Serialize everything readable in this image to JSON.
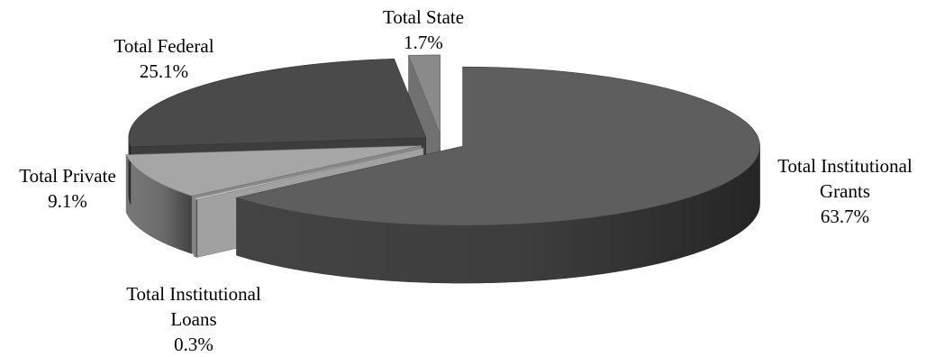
{
  "chart_data": {
    "type": "pie",
    "style": "3d-exploded",
    "legend": "none",
    "slices": [
      {
        "label": "Total Institutional Grants",
        "label_lines": [
          "Total Institutional",
          "Grants"
        ],
        "value": 63.7,
        "value_text": "63.7%",
        "color": "#5e5e5e"
      },
      {
        "label": "Total Institutional Loans",
        "label_lines": [
          "Total Institutional",
          "Loans"
        ],
        "value": 0.3,
        "value_text": "0.3%",
        "color": "#c4c4c4"
      },
      {
        "label": "Total Private",
        "label_lines": [
          "Total Private"
        ],
        "value": 9.1,
        "value_text": "9.1%",
        "color": "#a6a6a6"
      },
      {
        "label": "Total Federal",
        "label_lines": [
          "Total Federal"
        ],
        "value": 25.1,
        "value_text": "25.1%",
        "color": "#4a4a4a"
      },
      {
        "label": "Total State",
        "label_lines": [
          "Total State"
        ],
        "value": 1.7,
        "value_text": "1.7%",
        "color": "#8a8a8a"
      }
    ]
  }
}
